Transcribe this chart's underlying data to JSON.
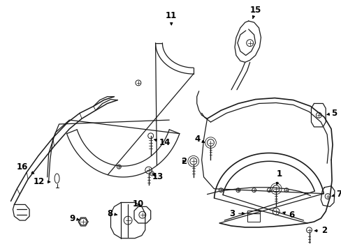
{
  "bg_color": "#ffffff",
  "line_color": "#1a1a1a",
  "fig_width": 4.89,
  "fig_height": 3.6,
  "dpi": 100,
  "label_fontsize": 8.5,
  "arrow_lw": 0.7,
  "part_lw": 0.9
}
